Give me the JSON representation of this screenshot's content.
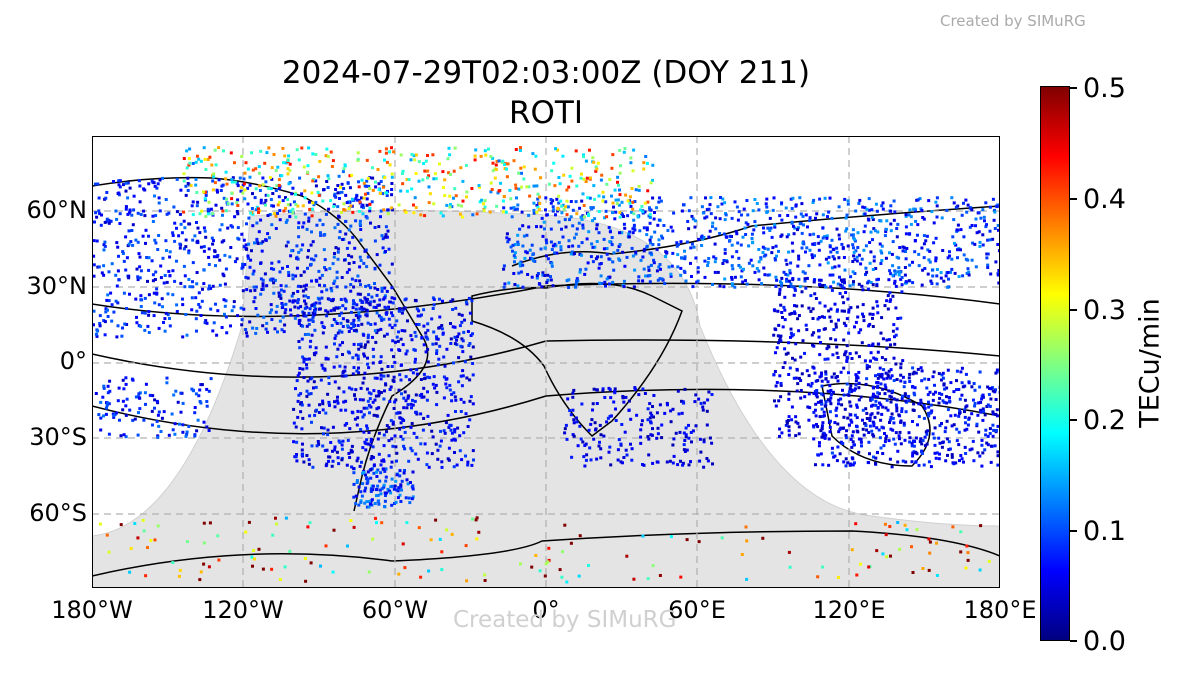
{
  "watermark_top": "Created by SIMuRG",
  "watermark_map": "Created by SIMuRG",
  "title_line1": "2024-07-29T02:03:00Z (DOY 211)",
  "title_line2": "ROTI",
  "lat_labels": [
    "60°N",
    "30°N",
    "0°",
    "30°S",
    "60°S"
  ],
  "lon_labels": [
    "180°W",
    "120°W",
    "60°W",
    "0°",
    "60°E",
    "120°E",
    "180°E"
  ],
  "colorbar": {
    "label": "TECu/min",
    "ticks": [
      "0.5",
      "0.4",
      "0.3",
      "0.2",
      "0.1",
      "0.0"
    ],
    "colormap": "jet",
    "min": 0.0,
    "max": 0.5
  },
  "colors": {
    "night_shade": "#e4e4e4",
    "grid": "#b0b0b0",
    "coast": "#000000"
  }
}
